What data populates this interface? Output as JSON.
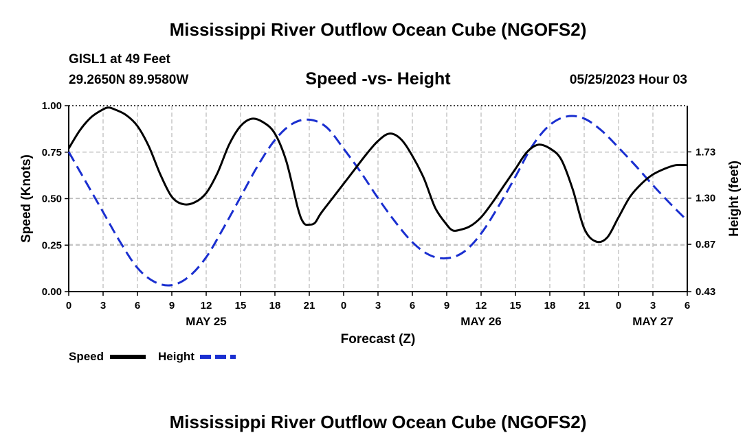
{
  "header": {
    "main_title": "Mississippi River Outflow Ocean Cube (NGOFS2)",
    "station": "GISL1 at 49 Feet",
    "coords": "29.2650N  89.9580W",
    "chart_title": "Speed -vs- Height",
    "datetime": "05/25/2023 Hour 03"
  },
  "footer": {
    "main_title": "Mississippi River Outflow Ocean Cube (NGOFS2)"
  },
  "chart_data": {
    "type": "line",
    "title": "Speed -vs- Height",
    "xlabel": "Forecast (Z)",
    "ylabel": "Speed (Knots)",
    "y2label": "Height (feet)",
    "xlim": [
      0,
      54
    ],
    "ylim": [
      0,
      1
    ],
    "y2lim": [
      0.43,
      2.16
    ],
    "x_ticks": [
      0,
      3,
      6,
      9,
      12,
      15,
      18,
      21,
      24,
      27,
      30,
      33,
      36,
      39,
      42,
      45,
      48,
      51,
      54
    ],
    "x_tick_labels": [
      "0",
      "3",
      "6",
      "9",
      "12",
      "15",
      "18",
      "21",
      "0",
      "3",
      "6",
      "9",
      "12",
      "15",
      "18",
      "21",
      "0",
      "3",
      "6"
    ],
    "date_labels": [
      {
        "x": 12,
        "label": "MAY 25"
      },
      {
        "x": 36,
        "label": "MAY 26"
      },
      {
        "x": 51,
        "label": "MAY 27"
      }
    ],
    "y_ticks": [
      0,
      0.25,
      0.5,
      0.75,
      1
    ],
    "y_tick_labels": [
      "0.00",
      "0.25",
      "0.50",
      "0.75",
      "1.00"
    ],
    "y2_ticks": [
      0.43,
      0.87,
      1.3,
      1.73
    ],
    "y2_tick_labels": [
      "0.43",
      "0.87",
      "1.30",
      "1.73"
    ],
    "grid": true,
    "legend_position": "bottom-left",
    "series": [
      {
        "name": "Speed",
        "axis": "left",
        "color": "#000000",
        "dash": "solid",
        "x": [
          0,
          1,
          2,
          3,
          3.5,
          4,
          5,
          6,
          7,
          8,
          9,
          10,
          11,
          12,
          13,
          14,
          15,
          16,
          17,
          18,
          19,
          20,
          20.5,
          21,
          21.5,
          22,
          23,
          24,
          25,
          26,
          27,
          28,
          29,
          30,
          31,
          32,
          33,
          33.5,
          34,
          35,
          36,
          37,
          38,
          39,
          40,
          41,
          42,
          43,
          44,
          45,
          46,
          47,
          48,
          49,
          50,
          51,
          52,
          53,
          54
        ],
        "values": [
          0.77,
          0.87,
          0.94,
          0.98,
          0.99,
          0.98,
          0.95,
          0.89,
          0.78,
          0.63,
          0.51,
          0.47,
          0.48,
          0.53,
          0.64,
          0.79,
          0.89,
          0.93,
          0.91,
          0.85,
          0.7,
          0.45,
          0.37,
          0.36,
          0.37,
          0.42,
          0.5,
          0.58,
          0.66,
          0.74,
          0.81,
          0.85,
          0.82,
          0.73,
          0.61,
          0.45,
          0.36,
          0.33,
          0.33,
          0.35,
          0.4,
          0.48,
          0.57,
          0.66,
          0.75,
          0.79,
          0.77,
          0.71,
          0.55,
          0.34,
          0.27,
          0.29,
          0.4,
          0.51,
          0.58,
          0.63,
          0.66,
          0.68,
          0.68
        ]
      },
      {
        "name": "Height",
        "axis": "right",
        "color": "#1a2fd0",
        "dash": "dashed",
        "x": [
          0,
          1.5,
          3,
          4.5,
          6,
          7.5,
          9,
          10.5,
          12,
          13.5,
          15,
          16.5,
          18,
          19.5,
          21,
          22.5,
          24,
          25.5,
          27,
          28.5,
          30,
          31.5,
          33,
          34.5,
          36,
          37.5,
          39,
          40.5,
          42,
          43.5,
          45,
          46.5,
          48,
          49.5,
          51,
          52.5,
          54
        ],
        "values": [
          1.73,
          1.45,
          1.17,
          0.89,
          0.65,
          0.52,
          0.49,
          0.57,
          0.75,
          1.02,
          1.31,
          1.6,
          1.84,
          1.99,
          2.03,
          1.96,
          1.76,
          1.54,
          1.3,
          1.08,
          0.89,
          0.77,
          0.74,
          0.8,
          0.97,
          1.22,
          1.5,
          1.79,
          1.98,
          2.06,
          2.04,
          1.93,
          1.77,
          1.6,
          1.42,
          1.25,
          1.09
        ]
      }
    ]
  }
}
